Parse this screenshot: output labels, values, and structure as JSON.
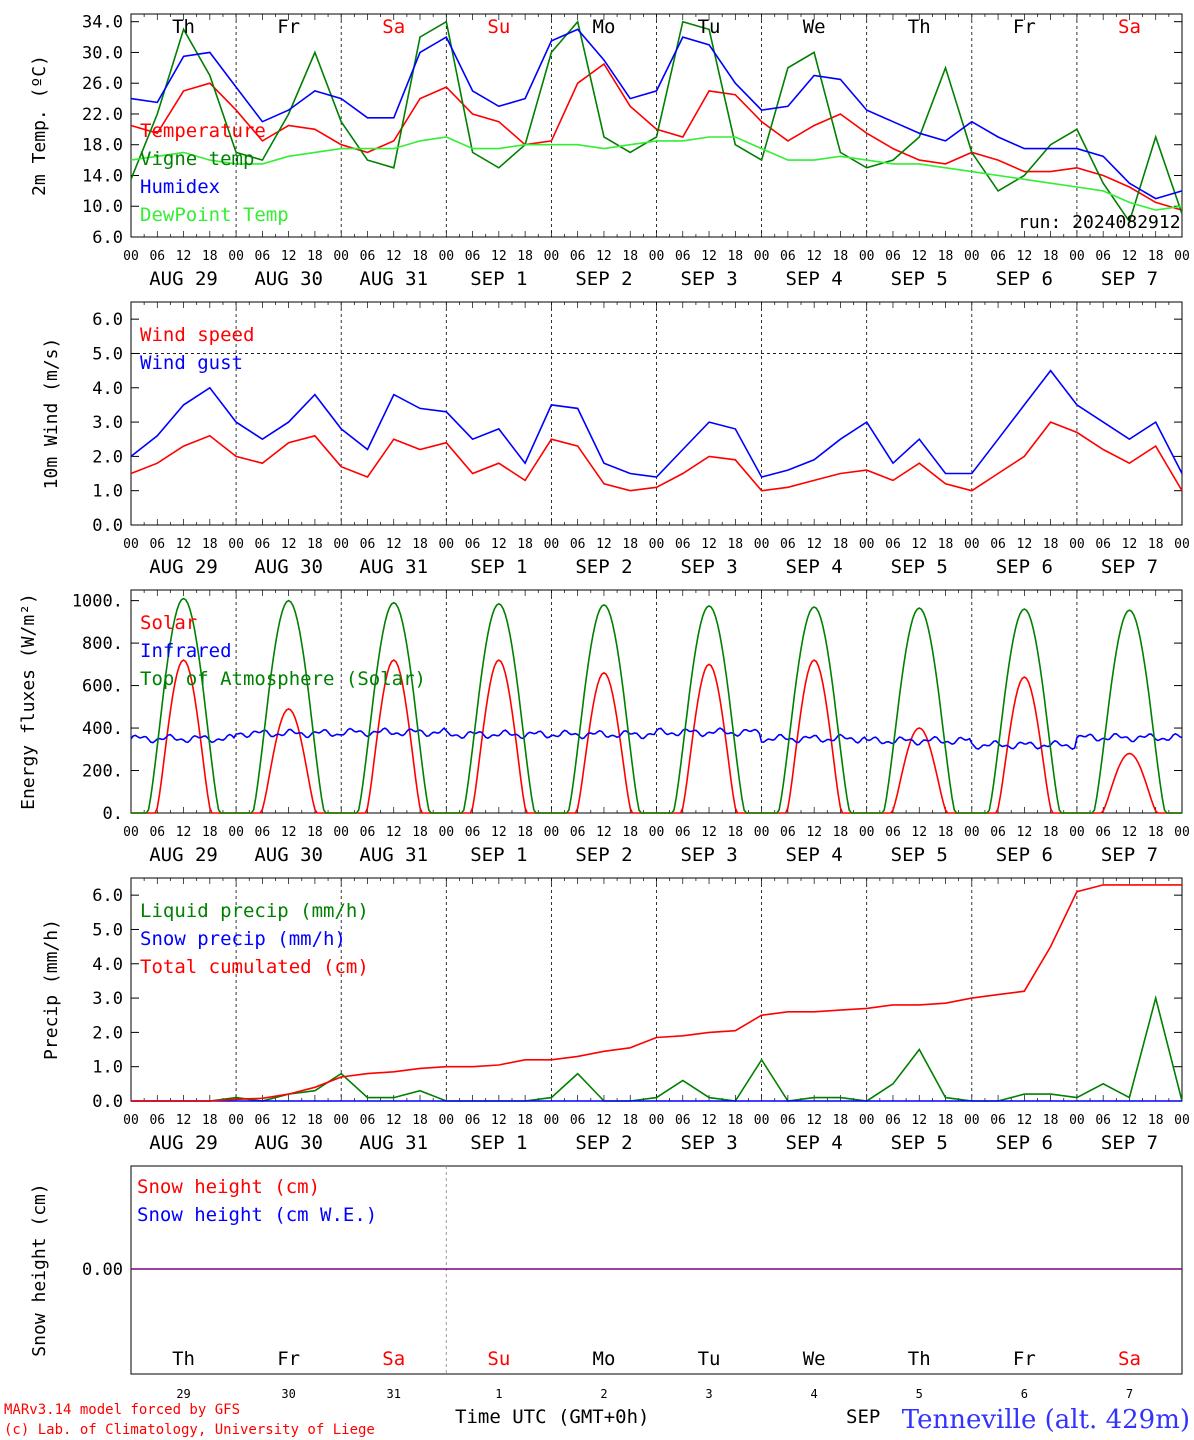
{
  "days": [
    {
      "weekday": "Th",
      "date": "AUG 29",
      "daynum": "29",
      "weekend": false
    },
    {
      "weekday": "Fr",
      "date": "AUG 30",
      "daynum": "30",
      "weekend": false
    },
    {
      "weekday": "Sa",
      "date": "AUG 31",
      "daynum": "31",
      "weekend": true
    },
    {
      "weekday": "Su",
      "date": "SEP  1",
      "daynum": "1",
      "weekend": true
    },
    {
      "weekday": "Mo",
      "date": "SEP  2",
      "daynum": "2",
      "weekend": false
    },
    {
      "weekday": "Tu",
      "date": "SEP  3",
      "daynum": "3",
      "weekend": false
    },
    {
      "weekday": "We",
      "date": "SEP  4",
      "daynum": "4",
      "weekend": false
    },
    {
      "weekday": "Th",
      "date": "SEP  5",
      "daynum": "5",
      "weekend": false
    },
    {
      "weekday": "Fr",
      "date": "SEP  6",
      "daynum": "6",
      "weekend": false
    },
    {
      "weekday": "Sa",
      "date": "SEP  7",
      "daynum": "7",
      "weekend": true
    }
  ],
  "hour_ticks": [
    "00",
    "06",
    "12",
    "18"
  ],
  "run_label": "run: 2024082912",
  "footer": {
    "model_line": "MARv3.14 model forced by GFS",
    "lab_line": "(c) Lab. of Climatology, University of Liege",
    "xaxis_title": "Time UTC (GMT+0h)",
    "month_label": "SEP",
    "station": "Tenneville (alt. 429m)"
  },
  "colors": {
    "red": "#ff0000",
    "green": "#008000",
    "blue": "#0000ff",
    "lightgreen": "#33ee33",
    "purple": "#7f007f",
    "weekend": "#ff0000"
  },
  "chart_data": [
    {
      "type": "line",
      "ylabel": "2m Temp. (ºC)",
      "ylim": [
        6,
        35
      ],
      "yticks": [
        "34.0",
        "30.0",
        "26.0",
        "22.0",
        "18.0",
        "14.0",
        "10.0",
        "6.0"
      ],
      "ytick_values": [
        34,
        30,
        26,
        22,
        18,
        14,
        10,
        6
      ],
      "x_hours_from_start": [
        0,
        6,
        12,
        18,
        24,
        30,
        36,
        42,
        48,
        54,
        60,
        66,
        72,
        78,
        84,
        90,
        96,
        102,
        108,
        114,
        120,
        126,
        132,
        138,
        144,
        150,
        156,
        162,
        168,
        174,
        180,
        186,
        192,
        198,
        204,
        210,
        216,
        222,
        228,
        234,
        240
      ],
      "series": [
        {
          "name": "Temperature",
          "color": "red",
          "values": [
            20.5,
            19.5,
            25,
            26,
            22.5,
            18.5,
            20.5,
            20,
            18,
            17,
            18.5,
            24,
            25.5,
            22,
            21,
            18,
            18.5,
            26,
            28.5,
            23,
            20,
            19,
            25,
            24.5,
            21,
            18.5,
            20.5,
            22,
            19.5,
            17.5,
            16,
            15.5,
            17,
            16,
            14.5,
            14.5,
            15,
            14,
            12.5,
            10.5,
            9.5
          ]
        },
        {
          "name": "Vigne temp",
          "color": "green",
          "values": [
            13.5,
            22,
            33,
            27,
            17,
            16,
            22,
            30,
            21,
            16,
            15,
            32,
            34,
            17,
            15,
            18,
            30,
            34,
            19,
            17,
            19,
            34,
            33,
            18,
            16,
            28,
            30,
            17,
            15,
            16,
            19,
            28,
            17,
            12,
            14,
            18,
            20,
            13,
            8,
            19,
            9
          ]
        },
        {
          "name": "Humidex",
          "color": "blue",
          "values": [
            24,
            23.5,
            29.5,
            30,
            25.5,
            21,
            22.5,
            25,
            24,
            21.5,
            21.5,
            30,
            32,
            25,
            23,
            24,
            31.5,
            33,
            29,
            24,
            25,
            32,
            31,
            26,
            22.5,
            23,
            27,
            26.5,
            22.5,
            21,
            19.5,
            18.5,
            21,
            19,
            17.5,
            17.5,
            17.5,
            16.5,
            13,
            11,
            12
          ]
        },
        {
          "name": "DewPoint Temp",
          "color": "lightgreen",
          "values": [
            16,
            16.5,
            17,
            16,
            15.5,
            15.5,
            16.5,
            17,
            17.5,
            17.5,
            17.5,
            18.5,
            19,
            17.5,
            17.5,
            18,
            18,
            18,
            17.5,
            18,
            18.5,
            18.5,
            19,
            19,
            17.5,
            16,
            16,
            16.5,
            16,
            15.5,
            15.5,
            15,
            14.5,
            14,
            13.5,
            13,
            12.5,
            12,
            10.5,
            9.5,
            10
          ]
        }
      ],
      "legend": "top-left"
    },
    {
      "type": "line",
      "ylabel": "10m Wind (m/s)",
      "ylim": [
        0,
        6.5
      ],
      "yticks": [
        "6.0",
        "5.0",
        "4.0",
        "3.0",
        "2.0",
        "1.0",
        "0.0"
      ],
      "ytick_values": [
        6,
        5,
        4,
        3,
        2,
        1,
        0
      ],
      "reference_line": 5.0,
      "x_hours_from_start": [
        0,
        6,
        12,
        18,
        24,
        30,
        36,
        42,
        48,
        54,
        60,
        66,
        72,
        78,
        84,
        90,
        96,
        102,
        108,
        114,
        120,
        126,
        132,
        138,
        144,
        150,
        156,
        162,
        168,
        174,
        180,
        186,
        192,
        198,
        204,
        210,
        216,
        222,
        228,
        234,
        240
      ],
      "series": [
        {
          "name": "Wind speed",
          "color": "red",
          "values": [
            1.5,
            1.8,
            2.3,
            2.6,
            2.0,
            1.8,
            2.4,
            2.6,
            1.7,
            1.4,
            2.5,
            2.2,
            2.4,
            1.5,
            1.8,
            1.3,
            2.5,
            2.3,
            1.2,
            1.0,
            1.1,
            1.5,
            2.0,
            1.9,
            1.0,
            1.1,
            1.3,
            1.5,
            1.6,
            1.3,
            1.8,
            1.2,
            1.0,
            1.5,
            2.0,
            3.0,
            2.7,
            2.2,
            1.8,
            2.3,
            1.0
          ]
        },
        {
          "name": "Wind gust",
          "color": "blue",
          "values": [
            2.0,
            2.6,
            3.5,
            4.0,
            3.0,
            2.5,
            3.0,
            3.8,
            2.8,
            2.2,
            3.8,
            3.4,
            3.3,
            2.5,
            2.8,
            1.8,
            3.5,
            3.4,
            1.8,
            1.5,
            1.4,
            2.2,
            3.0,
            2.8,
            1.4,
            1.6,
            1.9,
            2.5,
            3.0,
            1.8,
            2.5,
            1.5,
            1.5,
            2.5,
            3.5,
            4.5,
            3.5,
            3.0,
            2.5,
            3.0,
            1.5
          ]
        }
      ],
      "legend": "top-left"
    },
    {
      "type": "line",
      "ylabel": "Energy fluxes (W/m²)",
      "ylim": [
        0,
        1050
      ],
      "yticks": [
        "1000.",
        "800.",
        "600.",
        "400.",
        "200.",
        "0."
      ],
      "ytick_values": [
        1000,
        800,
        600,
        400,
        200,
        0
      ],
      "daily_peak_hour": 12,
      "series": [
        {
          "name": "Solar",
          "color": "red",
          "daily_peaks": [
            720,
            490,
            720,
            720,
            660,
            700,
            720,
            400,
            640,
            280
          ]
        },
        {
          "name": "Infrared",
          "color": "blue",
          "daily_mean": [
            350,
            375,
            380,
            370,
            370,
            380,
            350,
            340,
            320,
            355
          ]
        },
        {
          "name": "Top of Atmosphere (Solar)",
          "color": "green",
          "daily_peaks": [
            1010,
            1000,
            990,
            985,
            980,
            975,
            970,
            965,
            960,
            955
          ]
        }
      ],
      "legend": "top-left"
    },
    {
      "type": "line",
      "ylabel": "Precip (mm/h)",
      "ylim": [
        0,
        6.5
      ],
      "yticks": [
        "6.0",
        "5.0",
        "4.0",
        "3.0",
        "2.0",
        "1.0",
        "0.0"
      ],
      "ytick_values": [
        6,
        5,
        4,
        3,
        2,
        1,
        0
      ],
      "x_hours_from_start": [
        0,
        6,
        12,
        18,
        24,
        30,
        36,
        42,
        48,
        54,
        60,
        66,
        72,
        78,
        84,
        90,
        96,
        102,
        108,
        114,
        120,
        126,
        132,
        138,
        144,
        150,
        156,
        162,
        168,
        174,
        180,
        186,
        192,
        198,
        204,
        210,
        216,
        222,
        228,
        234,
        240
      ],
      "series": [
        {
          "name": "Liquid precip (mm/h)",
          "color": "green",
          "values": [
            0,
            0,
            0,
            0,
            0.1,
            0,
            0.2,
            0.3,
            0.8,
            0.1,
            0.1,
            0.3,
            0,
            0,
            0,
            0,
            0.1,
            0.8,
            0,
            0,
            0.1,
            0.6,
            0.1,
            0,
            1.2,
            0,
            0.1,
            0.1,
            0,
            0.5,
            1.5,
            0.1,
            0,
            0,
            0.2,
            0.2,
            0.1,
            0.5,
            0.1,
            3.0,
            0
          ]
        },
        {
          "name": "Snow precip (mm/h)",
          "color": "blue",
          "values": [
            0,
            0,
            0,
            0,
            0,
            0,
            0,
            0,
            0,
            0,
            0,
            0,
            0,
            0,
            0,
            0,
            0,
            0,
            0,
            0,
            0,
            0,
            0,
            0,
            0,
            0,
            0,
            0,
            0,
            0,
            0,
            0,
            0,
            0,
            0,
            0,
            0,
            0,
            0,
            0,
            0
          ]
        },
        {
          "name": "Total cumulated (cm)",
          "color": "red",
          "values": [
            0,
            0,
            0,
            0,
            0.05,
            0.08,
            0.2,
            0.4,
            0.7,
            0.8,
            0.85,
            0.95,
            1.0,
            1.0,
            1.05,
            1.2,
            1.2,
            1.3,
            1.45,
            1.55,
            1.85,
            1.9,
            2.0,
            2.05,
            2.5,
            2.6,
            2.6,
            2.65,
            2.7,
            2.8,
            2.8,
            2.85,
            3.0,
            3.1,
            3.2,
            4.5,
            6.1,
            6.3,
            6.3,
            6.3,
            6.3
          ]
        }
      ],
      "legend": "top-left"
    },
    {
      "type": "line",
      "ylabel": "Snow height (cm)",
      "yticks": [
        "0.00"
      ],
      "ytick_values": [
        0
      ],
      "series": [
        {
          "name": "Snow height (cm)",
          "color": "red",
          "values": [
            0,
            0
          ]
        },
        {
          "name": "Snow height (cm W.E.)",
          "color": "blue",
          "values": [
            0,
            0
          ]
        }
      ],
      "legend": "top-left"
    }
  ]
}
